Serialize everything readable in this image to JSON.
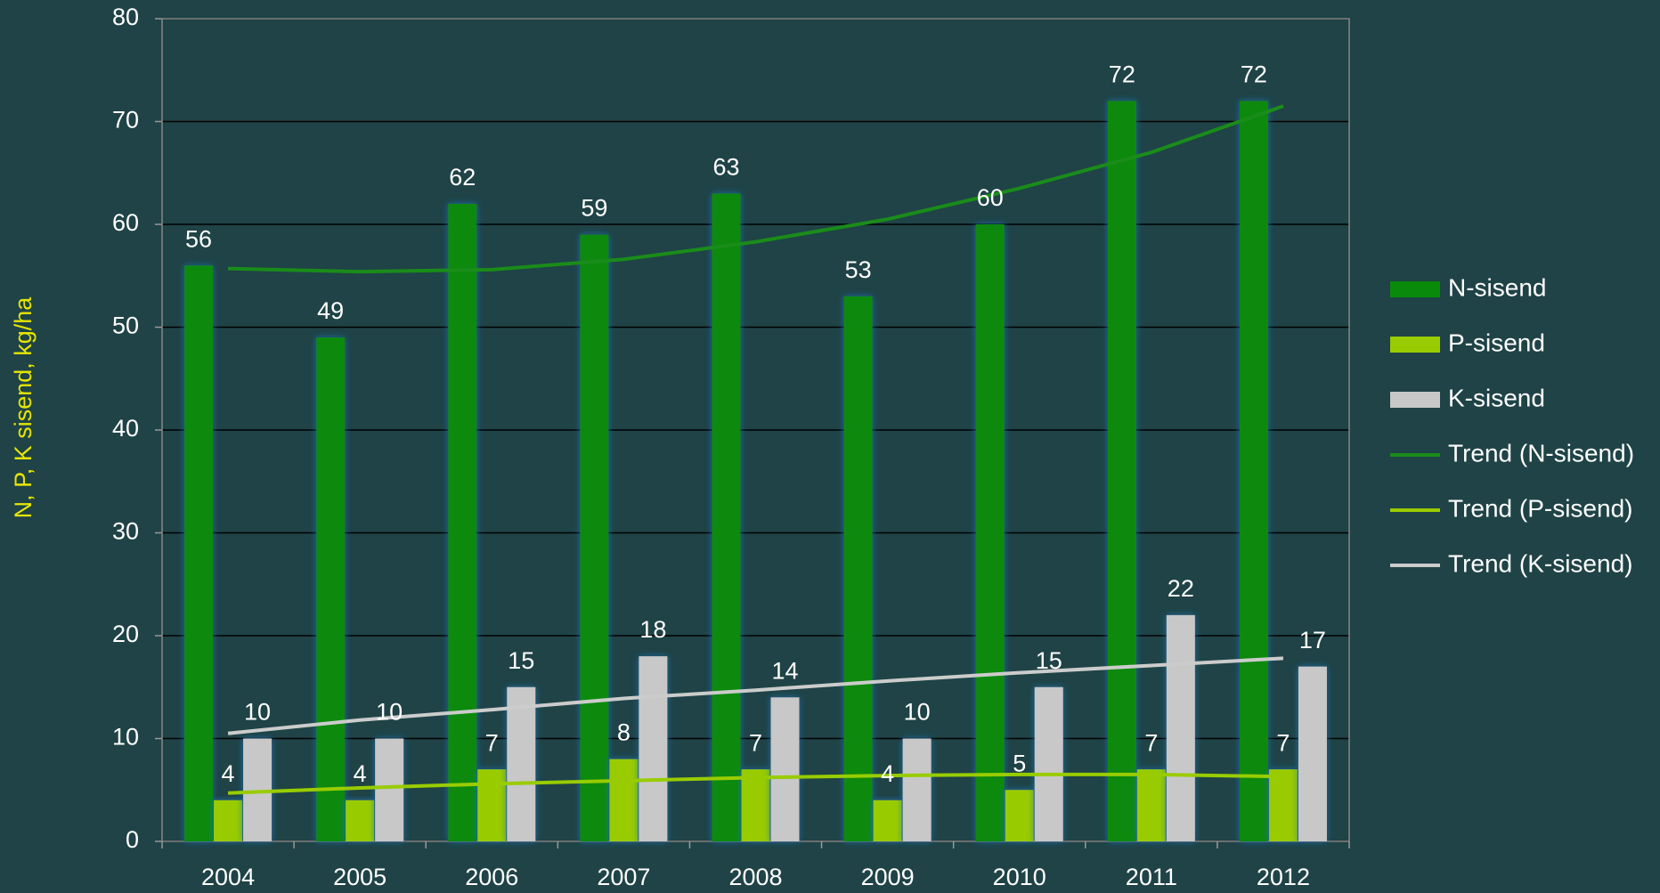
{
  "chart_data": {
    "type": "bar",
    "y_label": "N, P, K sisend, kg/ha",
    "categories": [
      "2004",
      "2005",
      "2006",
      "2007",
      "2008",
      "2009",
      "2010",
      "2011",
      "2012"
    ],
    "series": [
      {
        "name": "N-sisend",
        "type": "bar",
        "color": "#0a8a0a",
        "values": [
          56,
          49,
          62,
          59,
          63,
          53,
          60,
          72,
          72
        ]
      },
      {
        "name": "P-sisend",
        "type": "bar",
        "color": "#99cc00",
        "values": [
          4,
          4,
          7,
          8,
          7,
          4,
          5,
          7,
          7
        ]
      },
      {
        "name": "K-sisend",
        "type": "bar",
        "color": "#c8c8c8",
        "values": [
          10,
          10,
          15,
          18,
          14,
          10,
          15,
          22,
          17
        ]
      },
      {
        "name": "Trend (N-sisend)",
        "type": "line",
        "color": "#1a8c1a",
        "values": [
          55.7,
          55.4,
          55.6,
          56.6,
          58.3,
          60.5,
          63.5,
          67,
          71.5
        ]
      },
      {
        "name": "Trend (P-sisend)",
        "type": "line",
        "color": "#99cc00",
        "values": [
          4.7,
          5.2,
          5.6,
          5.9,
          6.2,
          6.4,
          6.5,
          6.5,
          6.3
        ]
      },
      {
        "name": "Trend (K-sisend)",
        "type": "line",
        "color": "#cccccc",
        "values": [
          10.5,
          11.8,
          12.8,
          13.9,
          14.7,
          15.6,
          16.4,
          17.1,
          17.8
        ]
      }
    ],
    "ylim": [
      0,
      80
    ],
    "yticks": [
      0,
      10,
      20,
      30,
      40,
      50,
      60,
      70,
      80
    ],
    "grid": true,
    "legend": "right"
  }
}
